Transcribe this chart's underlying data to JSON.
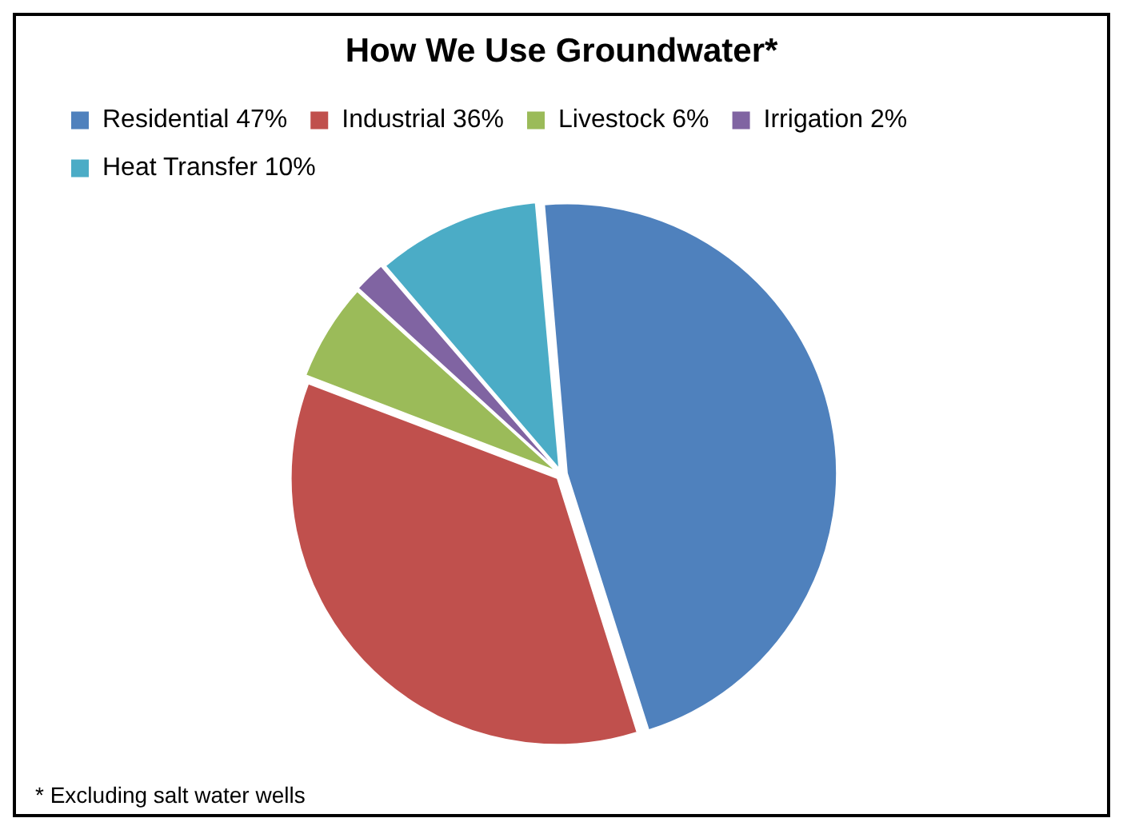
{
  "chart_data": {
    "type": "pie",
    "title": "How We Use Groundwater*",
    "categories": [
      "Residential 47%",
      "Industrial 36%",
      "Livestock 6%",
      "Irrigation 2%",
      "Heat Transfer 10%"
    ],
    "values": [
      47,
      36,
      6,
      2,
      10
    ],
    "colors": [
      "#4f81bd",
      "#c0504d",
      "#9bbb59",
      "#8064a2",
      "#4bacc6"
    ],
    "legend": "top",
    "annotations": [
      "* Excluding salt water wells"
    ]
  }
}
